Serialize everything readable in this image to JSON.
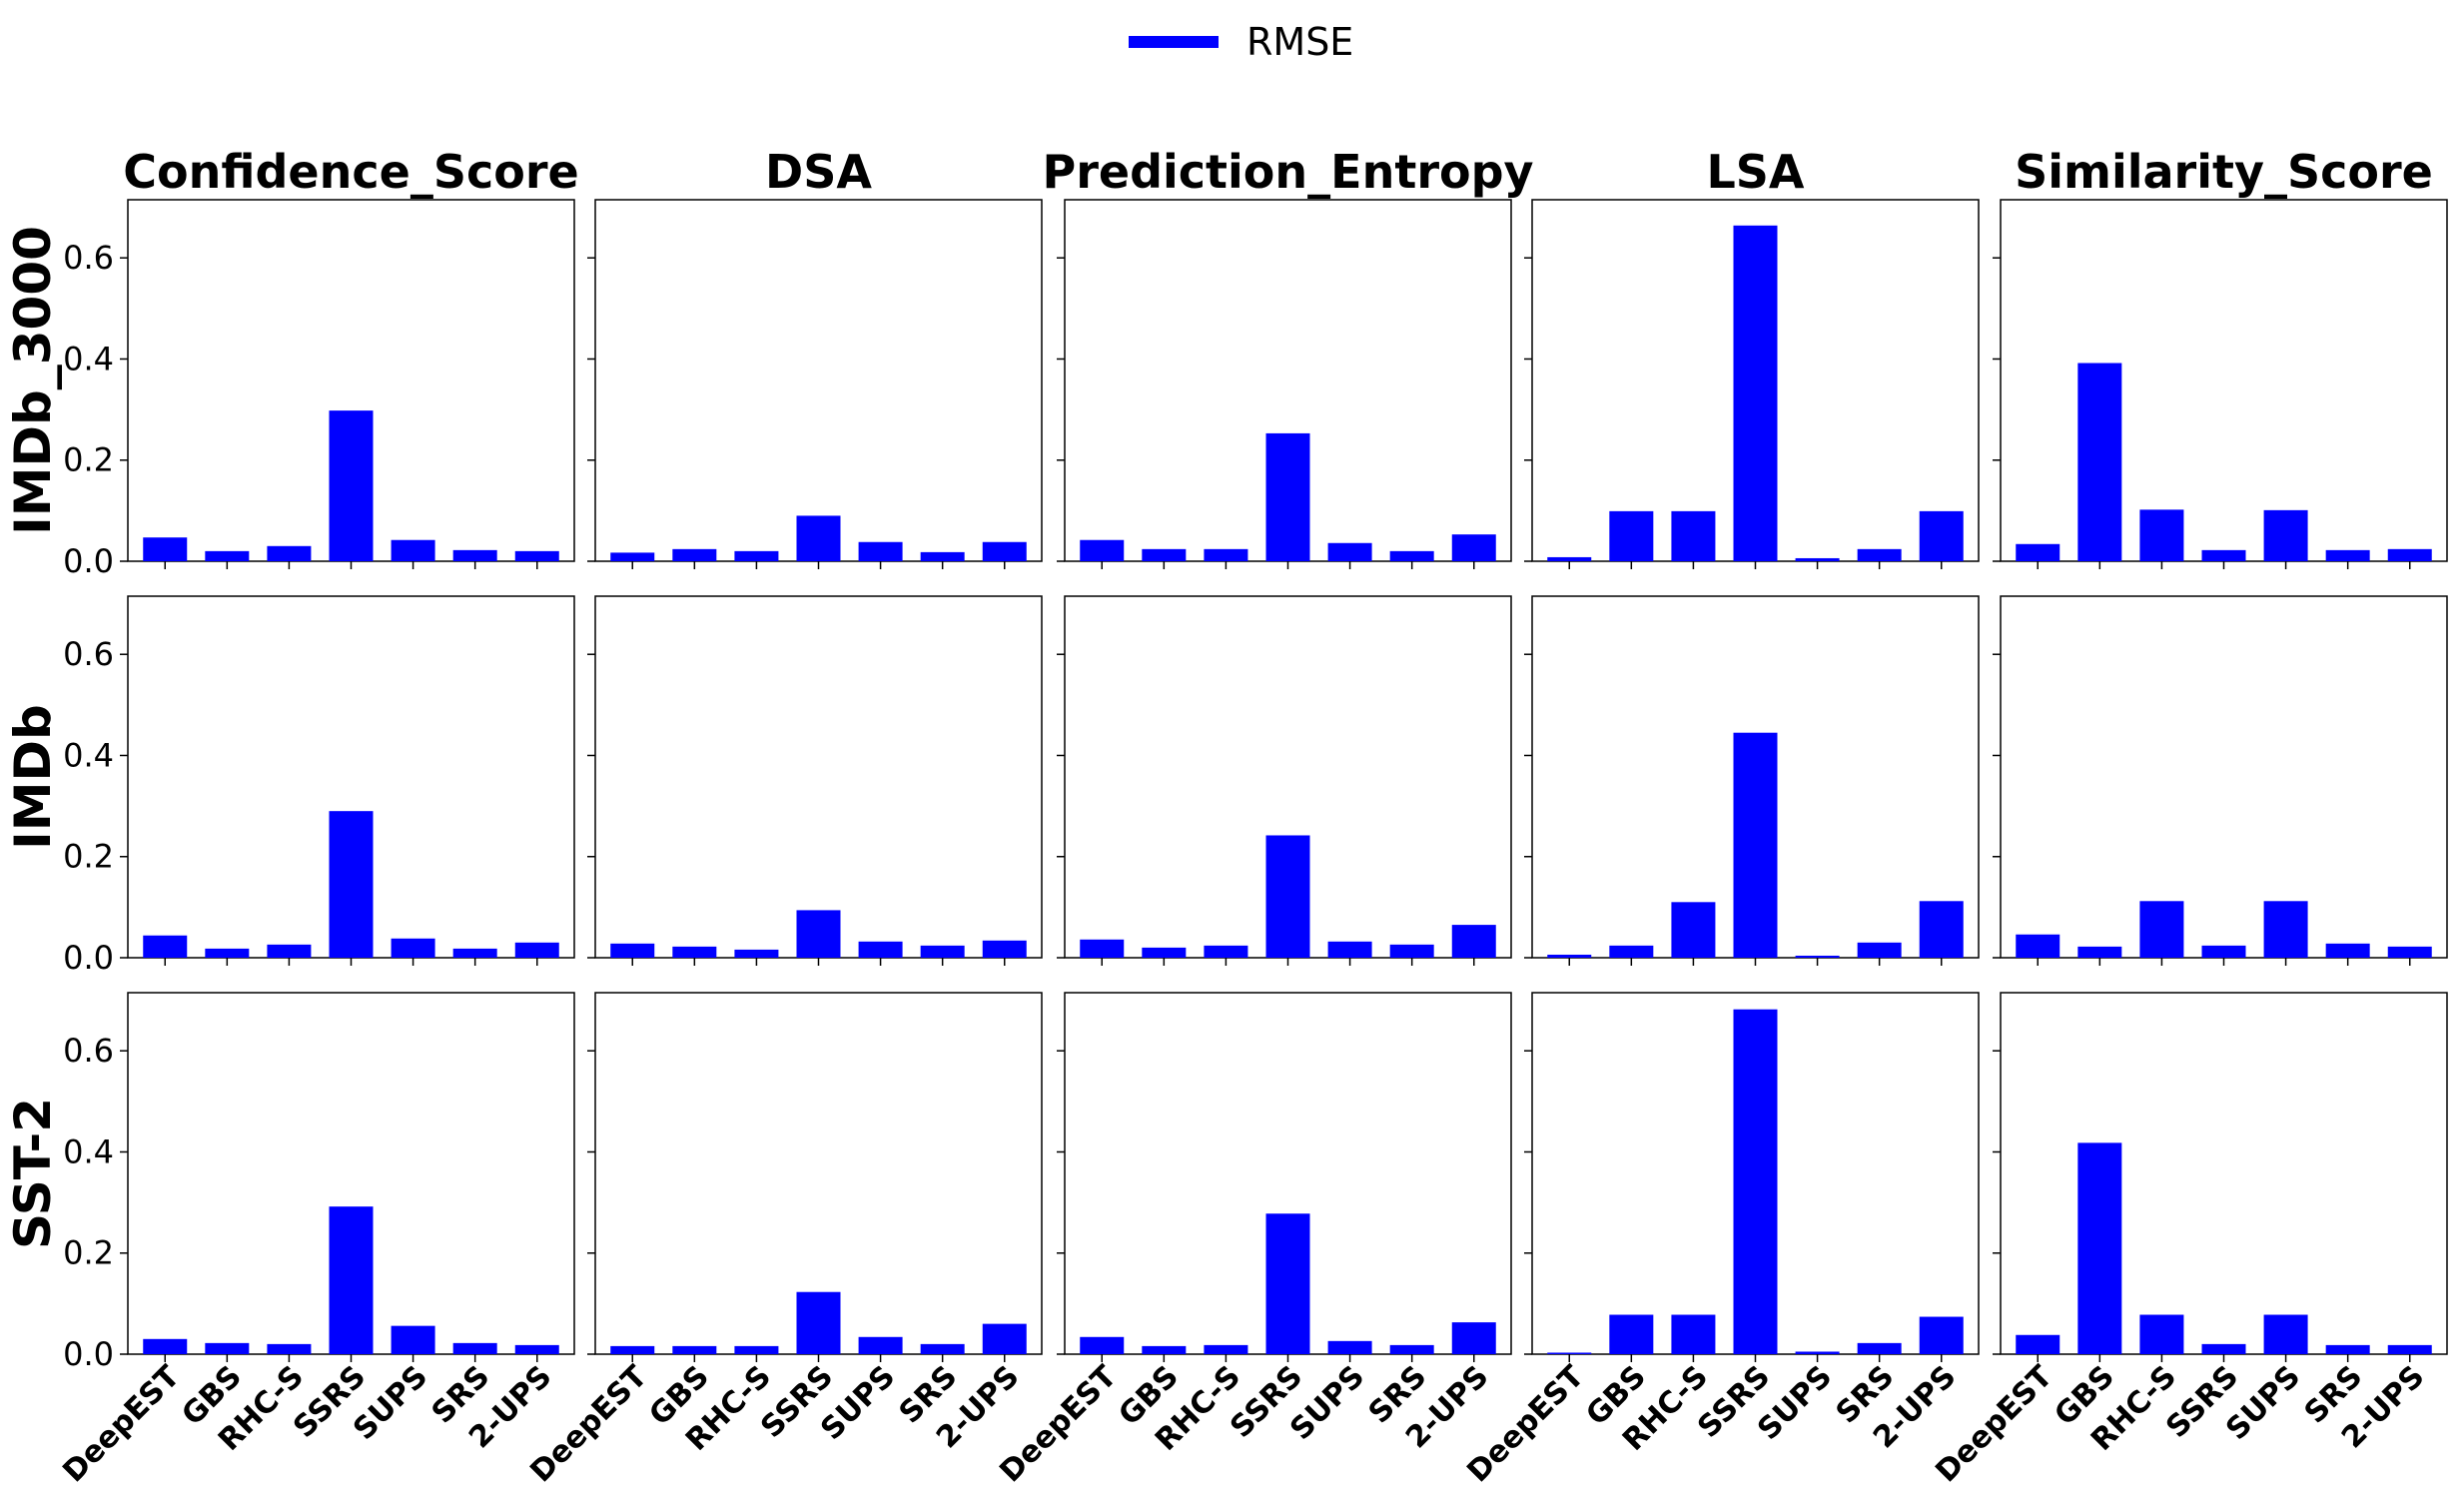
{
  "legend": {
    "label": "RMSE",
    "color": "#0000ff"
  },
  "chart_data": {
    "type": "bar",
    "bar_color": "#0000ff",
    "columns": [
      "Confidence_Score",
      "DSA",
      "Prediction_Entropy",
      "LSA",
      "Similarity_Score"
    ],
    "rows": [
      "IMDb_3000",
      "IMDb",
      "SST-2"
    ],
    "categories": [
      "DeepEST",
      "GBS",
      "RHC-S",
      "SSRS",
      "SUPS",
      "SRS",
      "2-UPS"
    ],
    "yticks": [
      "0.0",
      "0.2",
      "0.4",
      "0.6"
    ],
    "ylim": [
      0,
      0.715
    ],
    "series": [
      {
        "name": "RMSE",
        "values": [
          [
            [
              0.047,
              0.02,
              0.03,
              0.298,
              0.042,
              0.022,
              0.02
            ],
            [
              0.017,
              0.024,
              0.02,
              0.09,
              0.038,
              0.018,
              0.038
            ],
            [
              0.042,
              0.024,
              0.024,
              0.253,
              0.036,
              0.02,
              0.053
            ],
            [
              0.008,
              0.099,
              0.099,
              0.664,
              0.006,
              0.024,
              0.099
            ],
            [
              0.034,
              0.392,
              0.102,
              0.022,
              0.101,
              0.022,
              0.024
            ]
          ],
          [
            [
              0.044,
              0.018,
              0.026,
              0.29,
              0.038,
              0.018,
              0.03
            ],
            [
              0.028,
              0.022,
              0.016,
              0.094,
              0.032,
              0.024,
              0.034
            ],
            [
              0.036,
              0.02,
              0.024,
              0.242,
              0.032,
              0.026,
              0.065
            ],
            [
              0.006,
              0.024,
              0.11,
              0.445,
              0.004,
              0.03,
              0.112
            ],
            [
              0.046,
              0.022,
              0.112,
              0.024,
              0.112,
              0.028,
              0.022
            ]
          ],
          [
            [
              0.03,
              0.022,
              0.02,
              0.292,
              0.056,
              0.022,
              0.018
            ],
            [
              0.016,
              0.016,
              0.016,
              0.123,
              0.034,
              0.02,
              0.06
            ],
            [
              0.034,
              0.016,
              0.018,
              0.278,
              0.026,
              0.018,
              0.063
            ],
            [
              0.003,
              0.078,
              0.078,
              0.682,
              0.005,
              0.022,
              0.074
            ],
            [
              0.038,
              0.418,
              0.078,
              0.02,
              0.078,
              0.018,
              0.018
            ]
          ]
        ]
      }
    ],
    "grid": false,
    "legend_position": "top-center"
  }
}
